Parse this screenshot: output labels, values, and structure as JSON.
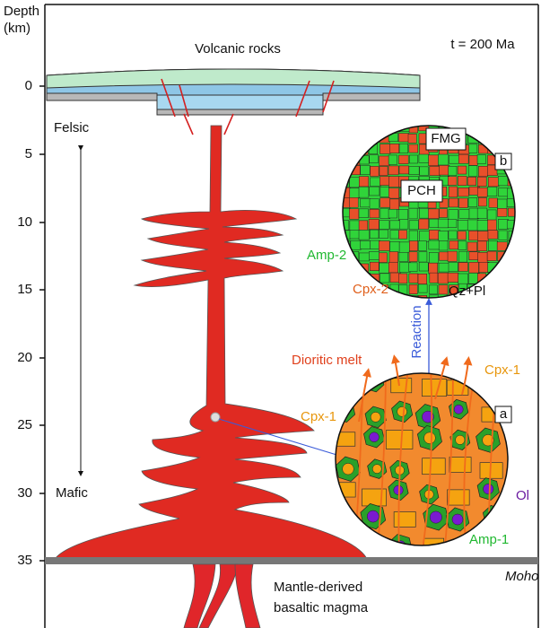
{
  "axis": {
    "title": [
      "Depth",
      "(km)"
    ],
    "ticks": [
      "0",
      "5",
      "10",
      "15",
      "20",
      "25",
      "30",
      "35"
    ]
  },
  "labels": {
    "volcanic": "Volcanic rocks",
    "time": "t = 200 Ma",
    "felsic": "Felsic",
    "mafic": "Mafic",
    "fmg": "FMG",
    "pch": "PCH",
    "panel_b": "b",
    "amp2": "Amp-2",
    "cpx2": "Cpx-2",
    "qzpl": "Qz+Pl",
    "reaction": "Reaction",
    "melt": "Dioritic melt",
    "cpx1_right": "Cpx-1",
    "cpx1_left": "Cpx-1",
    "panel_a": "a",
    "ol": "Ol",
    "amp1": "Amp-1",
    "moho": "Moho",
    "mantle": [
      "Mantle-derived",
      "basaltic magma"
    ]
  }
}
